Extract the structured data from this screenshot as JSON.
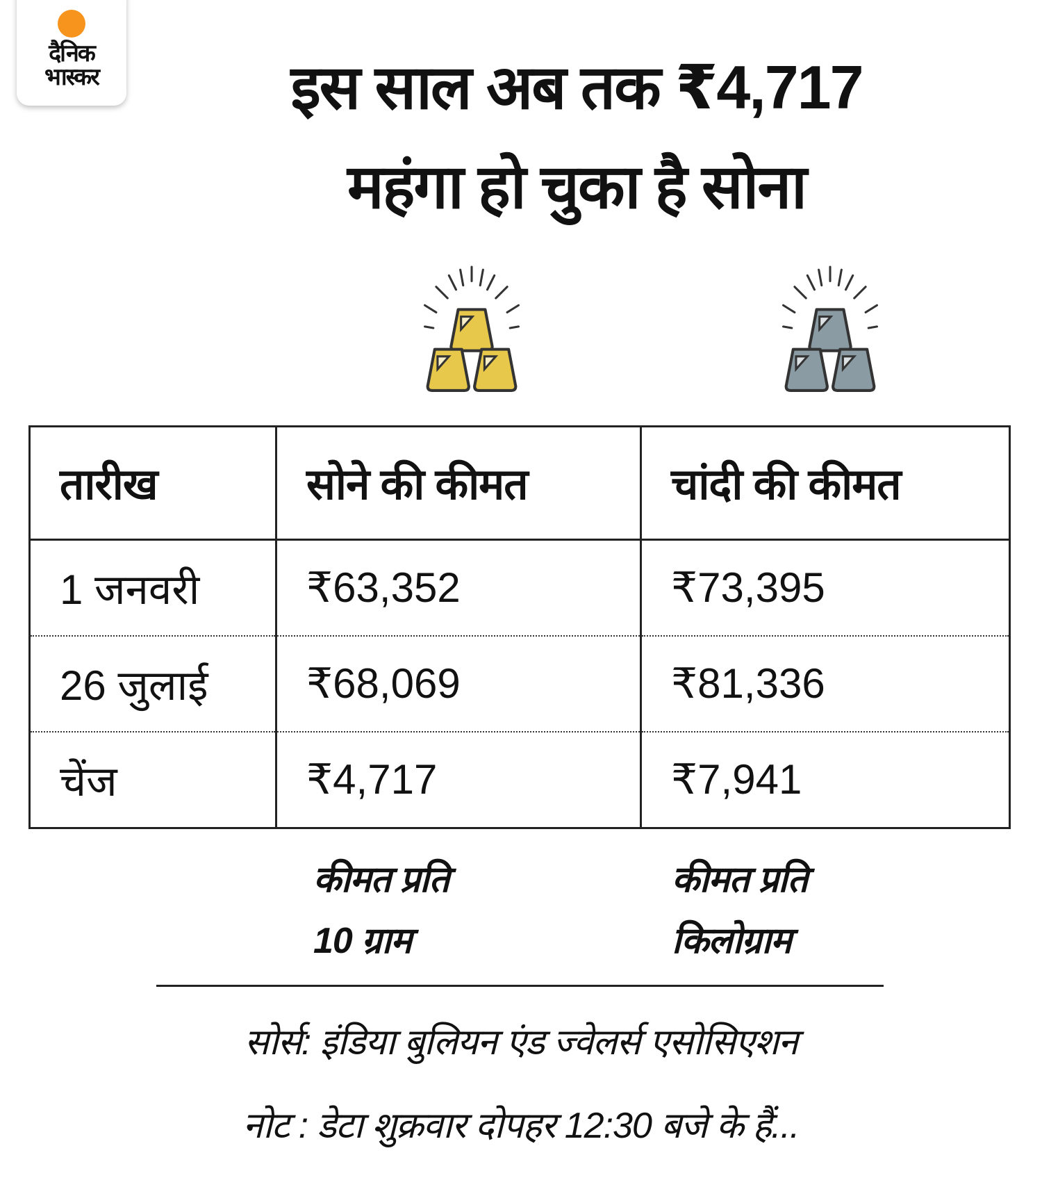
{
  "brand": {
    "logo_text": [
      "दैनिक",
      "भास्कर"
    ],
    "logo_sun_color": "#f7941d"
  },
  "headline": {
    "line1": "इस साल अब तक ₹4,717",
    "line2": "महंगा हो चुका है सोना"
  },
  "icons": {
    "gold": {
      "name": "gold-bars-icon",
      "color": "#e8c84a"
    },
    "silver": {
      "name": "silver-bars-icon",
      "color": "#8a9ba3"
    }
  },
  "table": {
    "headers": [
      "तारीख",
      "सोने की कीमत",
      "चांदी की कीमत"
    ],
    "rows": [
      [
        "1 जनवरी",
        "₹63,352",
        "₹73,395"
      ],
      [
        "26 जुलाई",
        "₹68,069",
        "₹81,336"
      ],
      [
        "चेंज",
        "₹4,717",
        "₹7,941"
      ]
    ]
  },
  "units": {
    "gold": [
      "कीमत प्रति",
      "10 ग्राम"
    ],
    "silver": [
      "कीमत प्रति",
      "किलोग्राम"
    ]
  },
  "footer": {
    "source": "सोर्स: इंडिया बुलियन एंड ज्वेलर्स एसोसिएशन",
    "note": "नोट : डेटा शुक्रवार दोपहर 12:30 बजे के हैं..."
  }
}
